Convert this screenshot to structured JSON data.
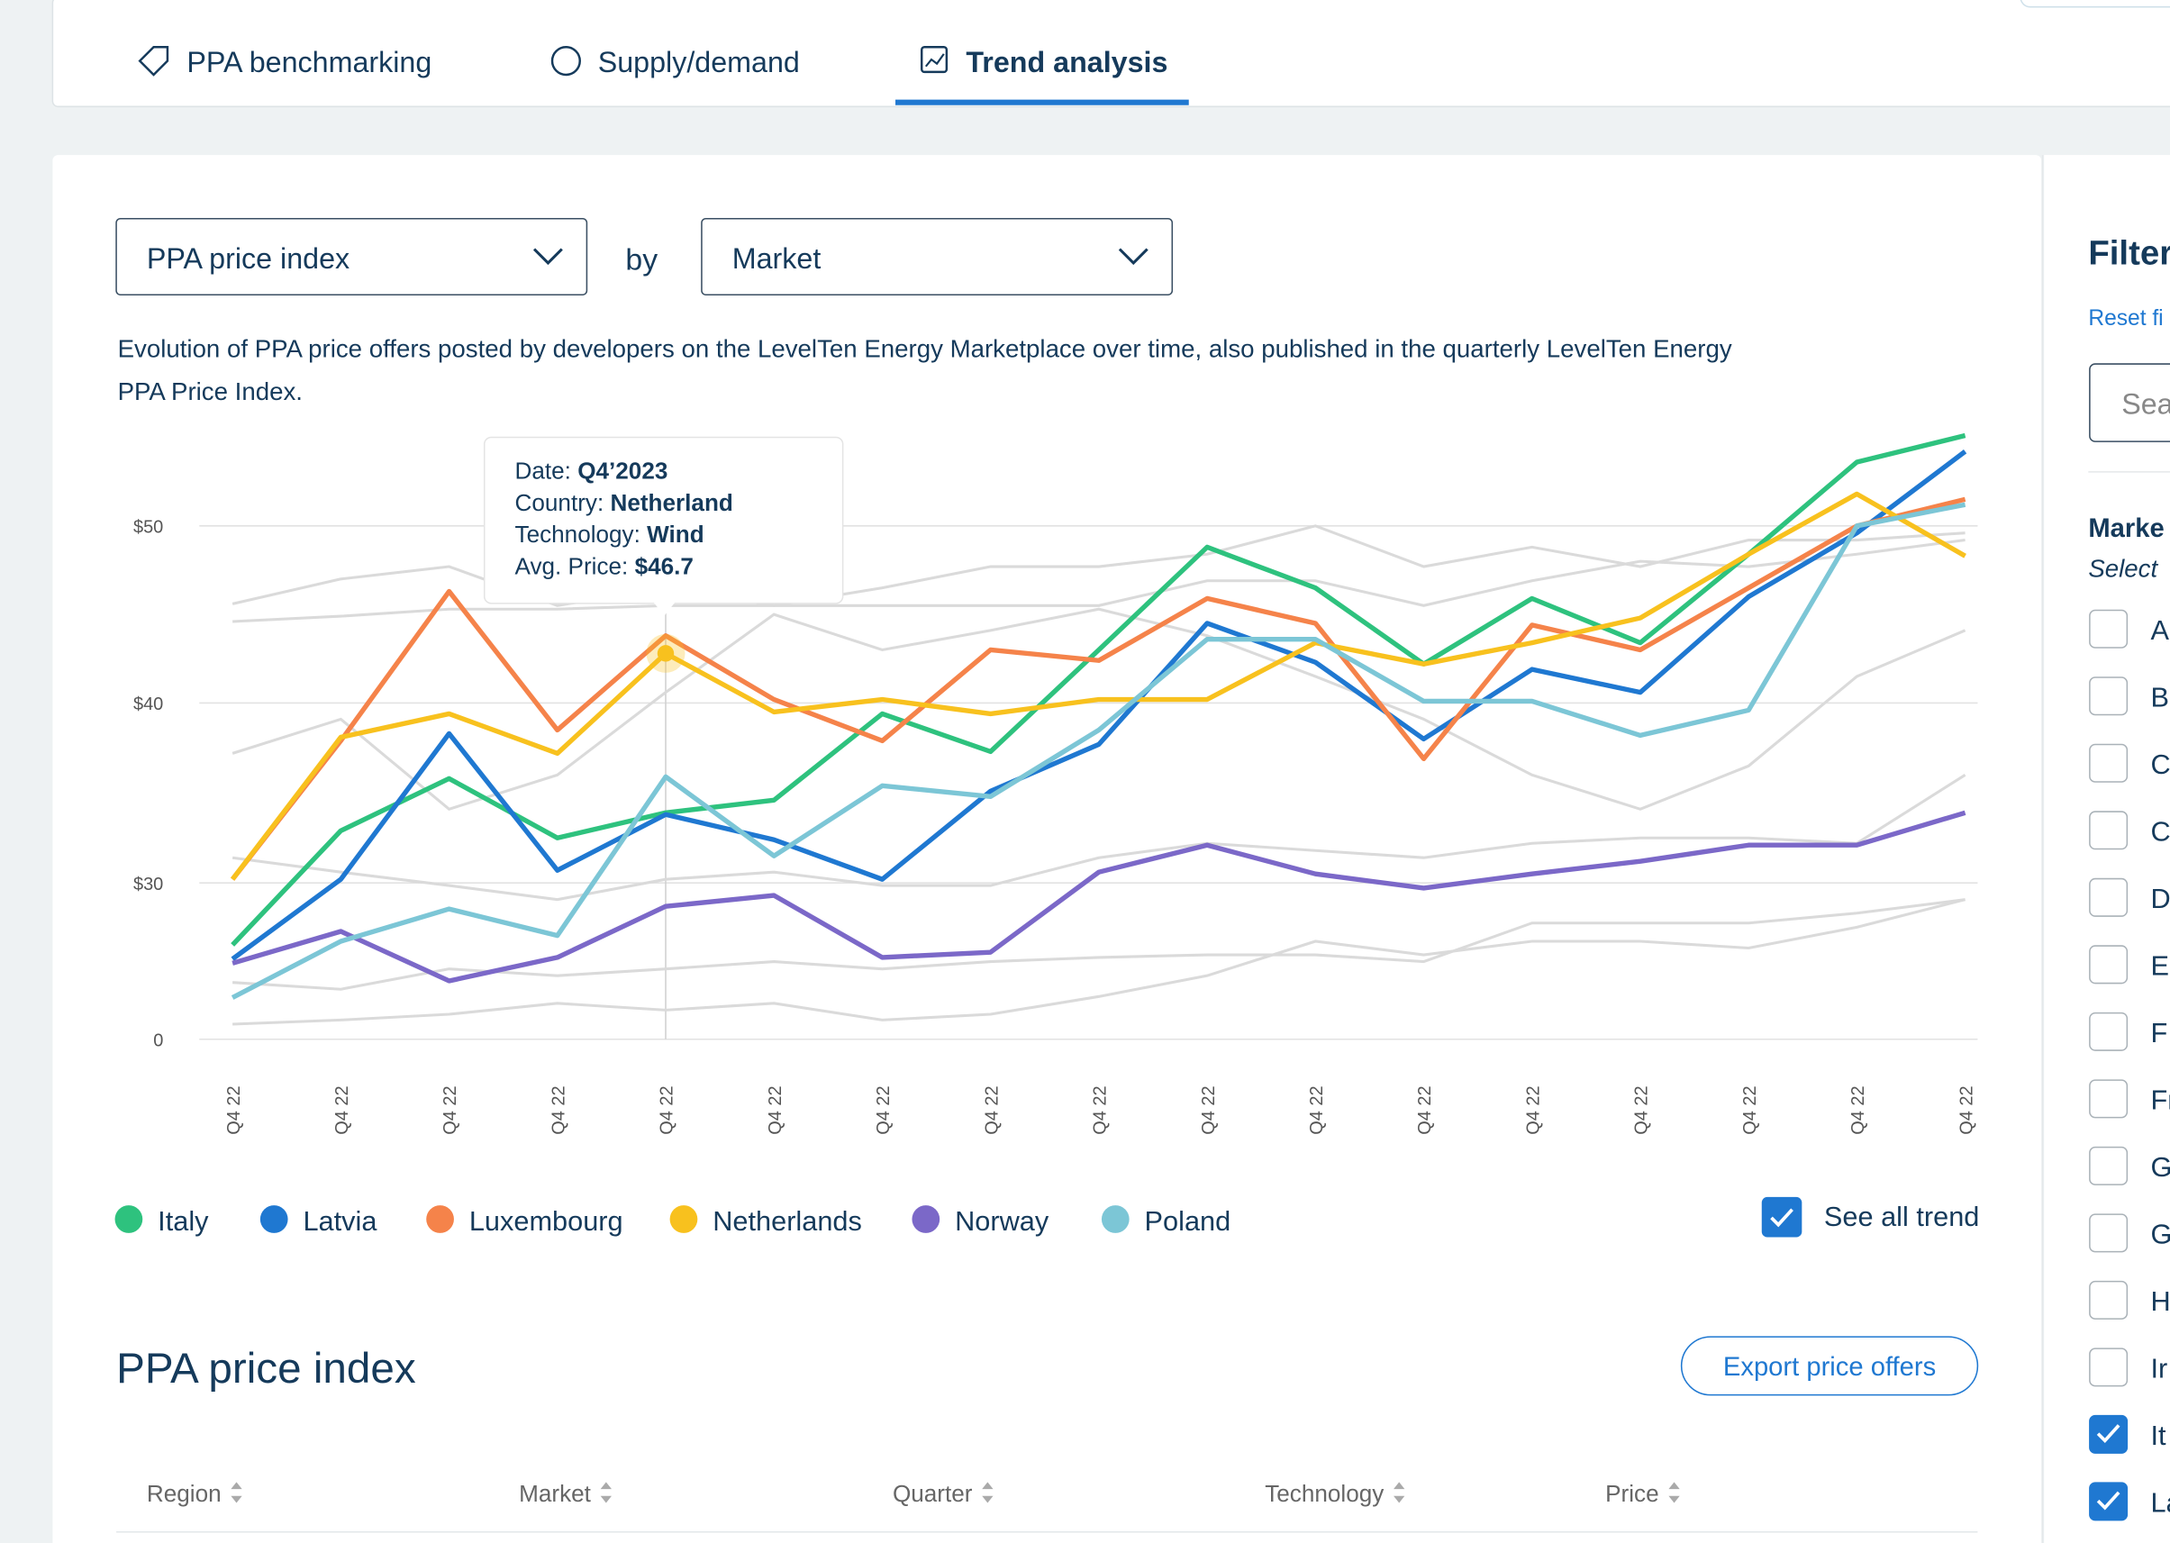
{
  "tabs": [
    {
      "label": "PPA benchmarking",
      "active": false
    },
    {
      "label": "Supply/demand",
      "active": false
    },
    {
      "label": "Trend analysis",
      "active": true
    }
  ],
  "controls": {
    "metric": "PPA price index",
    "by": "by",
    "dimension": "Market"
  },
  "description_lines": [
    "Evolution of PPA price offers posted by developers on the LevelTen Energy Marketplace over time, also published in the quarterly LevelTen Energy",
    "PPA Price Index."
  ],
  "chart_data": {
    "type": "line",
    "categories": [
      "Q4 22",
      "Q4 22",
      "Q4 22",
      "Q4 22",
      "Q4 22",
      "Q4 22",
      "Q4 22",
      "Q4 22",
      "Q4 22",
      "Q4 22",
      "Q4 22",
      "Q4 22",
      "Q4 22",
      "Q4 22",
      "Q4 22",
      "Q4 22",
      "Q4 22"
    ],
    "ylim": [
      0,
      55
    ],
    "yticks": [
      0,
      {
        "value": 30,
        "label": "$30"
      },
      {
        "value": 40,
        "label": "$40"
      },
      {
        "value": 50,
        "label": "$50"
      }
    ],
    "grid": true,
    "series": [
      {
        "name": "Italy",
        "color": "#2ec27e",
        "values": [
          18.1,
          32.9,
          35.8,
          32.5,
          33.9,
          34.6,
          39.4,
          37.3,
          43.0,
          48.8,
          46.5,
          42.2,
          45.9,
          43.4,
          48.4,
          53.6,
          55.1
        ]
      },
      {
        "name": "Latvia",
        "color": "#1f78d1",
        "values": [
          15.4,
          30.2,
          38.3,
          30.7,
          33.8,
          32.4,
          30.2,
          35.1,
          37.7,
          44.5,
          42.3,
          38.0,
          41.9,
          40.6,
          46.0,
          49.6,
          54.2
        ]
      },
      {
        "name": "Luxembourg",
        "color": "#f5834a",
        "values": [
          30.2,
          37.9,
          46.3,
          38.5,
          43.8,
          40.2,
          37.9,
          43.0,
          42.4,
          45.9,
          44.5,
          36.9,
          44.4,
          43.0,
          46.5,
          50.0,
          51.5
        ]
      },
      {
        "name": "Netherlands",
        "color": "#f8c11e",
        "values": [
          30.2,
          38.1,
          39.4,
          37.2,
          42.8,
          39.5,
          40.2,
          39.4,
          40.2,
          40.2,
          43.4,
          42.2,
          43.4,
          44.8,
          48.4,
          51.8,
          48.3
        ]
      },
      {
        "name": "Norway",
        "color": "#7b68c8",
        "values": [
          14.6,
          20.7,
          11.2,
          15.7,
          25.5,
          27.6,
          15.7,
          16.7,
          30.6,
          32.1,
          30.5,
          29.0,
          30.5,
          31.2,
          32.1,
          32.1,
          33.9
        ]
      },
      {
        "name": "Poland",
        "color": "#7cc6d6",
        "values": [
          8.0,
          18.8,
          25.0,
          19.9,
          35.9,
          31.5,
          35.4,
          34.8,
          38.5,
          43.6,
          43.6,
          40.1,
          40.1,
          38.2,
          39.6,
          50.0,
          51.2
        ]
      }
    ],
    "background_series": [
      {
        "color": "#dadada",
        "values": [
          45.6,
          47.0,
          47.7,
          45.5,
          46.5,
          45.5,
          46.5,
          47.7,
          47.7,
          48.4,
          50.0,
          47.7,
          48.8,
          47.7,
          49.2,
          49.2,
          49.6
        ]
      },
      {
        "color": "#dadada",
        "values": [
          44.6,
          44.9,
          45.3,
          45.3,
          45.5,
          45.5,
          45.5,
          45.5,
          45.5,
          46.9,
          46.9,
          45.5,
          46.9,
          48.0,
          47.7,
          48.4,
          49.2
        ]
      },
      {
        "color": "#dadada",
        "values": [
          31.4,
          30.6,
          29.5,
          26.8,
          30.2,
          30.6,
          29.5,
          29.5,
          31.4,
          32.2,
          31.8,
          31.4,
          32.2,
          32.5,
          32.5,
          32.2,
          36.0
        ]
      },
      {
        "color": "#dadada",
        "values": [
          2.9,
          3.7,
          4.8,
          6.9,
          5.6,
          6.9,
          3.7,
          4.8,
          8.2,
          12.2,
          18.8,
          16.2,
          18.8,
          18.8,
          17.5,
          21.5,
          26.8
        ]
      },
      {
        "color": "#dadada",
        "values": [
          10.9,
          9.6,
          13.5,
          12.2,
          13.5,
          14.9,
          13.5,
          14.9,
          15.7,
          16.2,
          16.2,
          14.9,
          22.3,
          22.3,
          22.3,
          24.2,
          26.8
        ]
      },
      {
        "color": "#dadada",
        "values": [
          37.2,
          39.1,
          34.1,
          36.0,
          40.6,
          45.0,
          43.0,
          44.1,
          45.3,
          43.8,
          41.5,
          39.1,
          36.0,
          34.1,
          36.5,
          41.5,
          44.1
        ]
      }
    ],
    "tooltip": [
      {
        "label": "Date:",
        "value": "Q4’2023"
      },
      {
        "label": "Country:",
        "value": "Netherland"
      },
      {
        "label": "Technology:",
        "value": "Wind"
      },
      {
        "label": "Avg. Price:",
        "value": "$46.7"
      }
    ]
  },
  "see_all_trend": {
    "label": "See all trend",
    "checked": true
  },
  "section": {
    "title": "PPA price index",
    "button": "Export price offers"
  },
  "table": {
    "headers": [
      "Region",
      "Market",
      "Quarter",
      "Technology",
      "Price"
    ]
  },
  "filters": {
    "title": "Filter",
    "reset": "Reset fi",
    "search": "Sea",
    "group": "Marke",
    "hint": "Select",
    "items": [
      {
        "label": "A",
        "checked": false
      },
      {
        "label": "B",
        "checked": false
      },
      {
        "label": "C",
        "checked": false
      },
      {
        "label": "C",
        "checked": false
      },
      {
        "label": "D",
        "checked": false
      },
      {
        "label": "E",
        "checked": false
      },
      {
        "label": "F",
        "checked": false
      },
      {
        "label": "Fr",
        "checked": false
      },
      {
        "label": "G",
        "checked": false
      },
      {
        "label": "G",
        "checked": false
      },
      {
        "label": "H",
        "checked": false
      },
      {
        "label": "Ir",
        "checked": false
      },
      {
        "label": "It",
        "checked": true
      },
      {
        "label": "La",
        "checked": true
      }
    ]
  }
}
